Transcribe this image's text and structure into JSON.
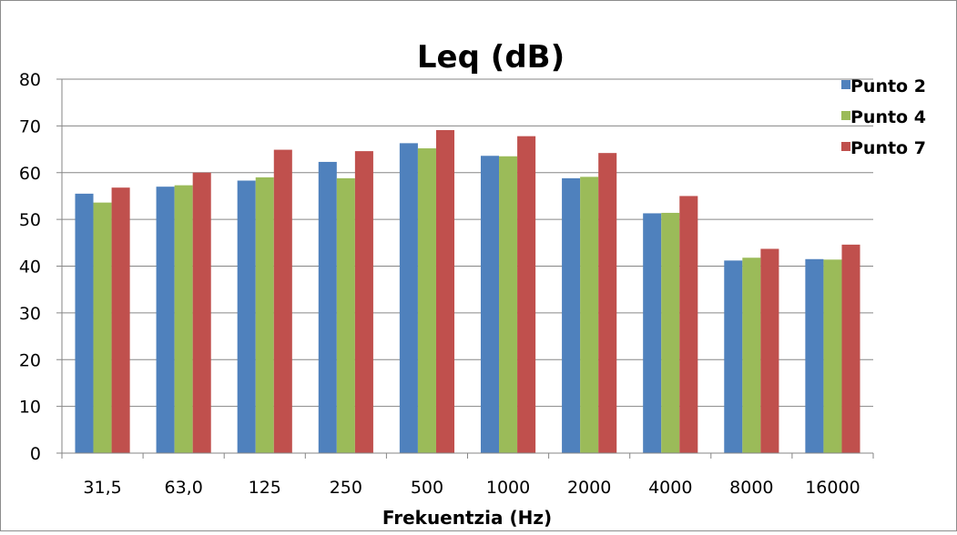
{
  "chart_data": {
    "type": "bar",
    "title": "Leq (dB)",
    "xlabel": "Frekuentzia (Hz)",
    "ylabel": "",
    "ylim": [
      0,
      80
    ],
    "yticks": [
      "0",
      "10",
      "20",
      "30",
      "40",
      "50",
      "60",
      "70",
      "80"
    ],
    "grid": true,
    "legend_position": "top-right",
    "categories": [
      "31,5",
      "63,0",
      "125",
      "250",
      "500",
      "1000",
      "2000",
      "4000",
      "8000",
      "16000"
    ],
    "series": [
      {
        "name": "Punto 2",
        "color": "#4f81bd",
        "values": [
          55.5,
          57.0,
          58.3,
          62.3,
          66.3,
          63.6,
          58.8,
          51.3,
          41.2,
          41.5
        ]
      },
      {
        "name": "Punto 4",
        "color": "#9bbb59",
        "values": [
          53.6,
          57.3,
          59.0,
          58.8,
          65.2,
          63.5,
          59.1,
          51.4,
          41.8,
          41.4
        ]
      },
      {
        "name": "Punto 7",
        "color": "#c0504d",
        "values": [
          56.8,
          60.0,
          64.9,
          64.6,
          69.1,
          67.8,
          64.2,
          55.0,
          43.7,
          44.6
        ]
      }
    ]
  }
}
